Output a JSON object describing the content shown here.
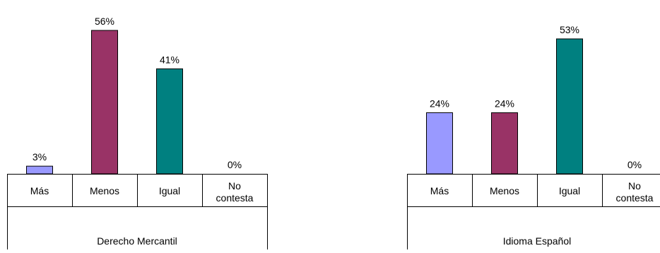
{
  "chart_data": [
    {
      "type": "bar",
      "title": "",
      "xlabel": "",
      "ylabel": "",
      "group_label": "Derecho Mercantil",
      "categories": [
        [
          "Más"
        ],
        [
          "Menos"
        ],
        [
          "Igual"
        ],
        [
          "No",
          "contesta"
        ]
      ],
      "values": [
        3,
        56,
        41,
        0
      ],
      "value_labels": [
        "3%",
        "56%",
        "41%",
        "0%"
      ],
      "bar_colors": [
        "#9999ff",
        "#993366",
        "#008080",
        "#cccccc"
      ],
      "ylim": [
        0,
        56
      ],
      "grid": false,
      "legend": "none"
    },
    {
      "type": "bar",
      "title": "",
      "xlabel": "",
      "ylabel": "",
      "group_label": "Idioma Español",
      "categories": [
        [
          "Más"
        ],
        [
          "Menos"
        ],
        [
          "Igual"
        ],
        [
          "No",
          "contesta"
        ]
      ],
      "values": [
        24,
        24,
        53,
        0
      ],
      "value_labels": [
        "24%",
        "24%",
        "53%",
        "0%"
      ],
      "bar_colors": [
        "#9999ff",
        "#993366",
        "#008080",
        "#cccccc"
      ],
      "ylim": [
        0,
        53
      ],
      "grid": false,
      "legend": "none"
    }
  ]
}
